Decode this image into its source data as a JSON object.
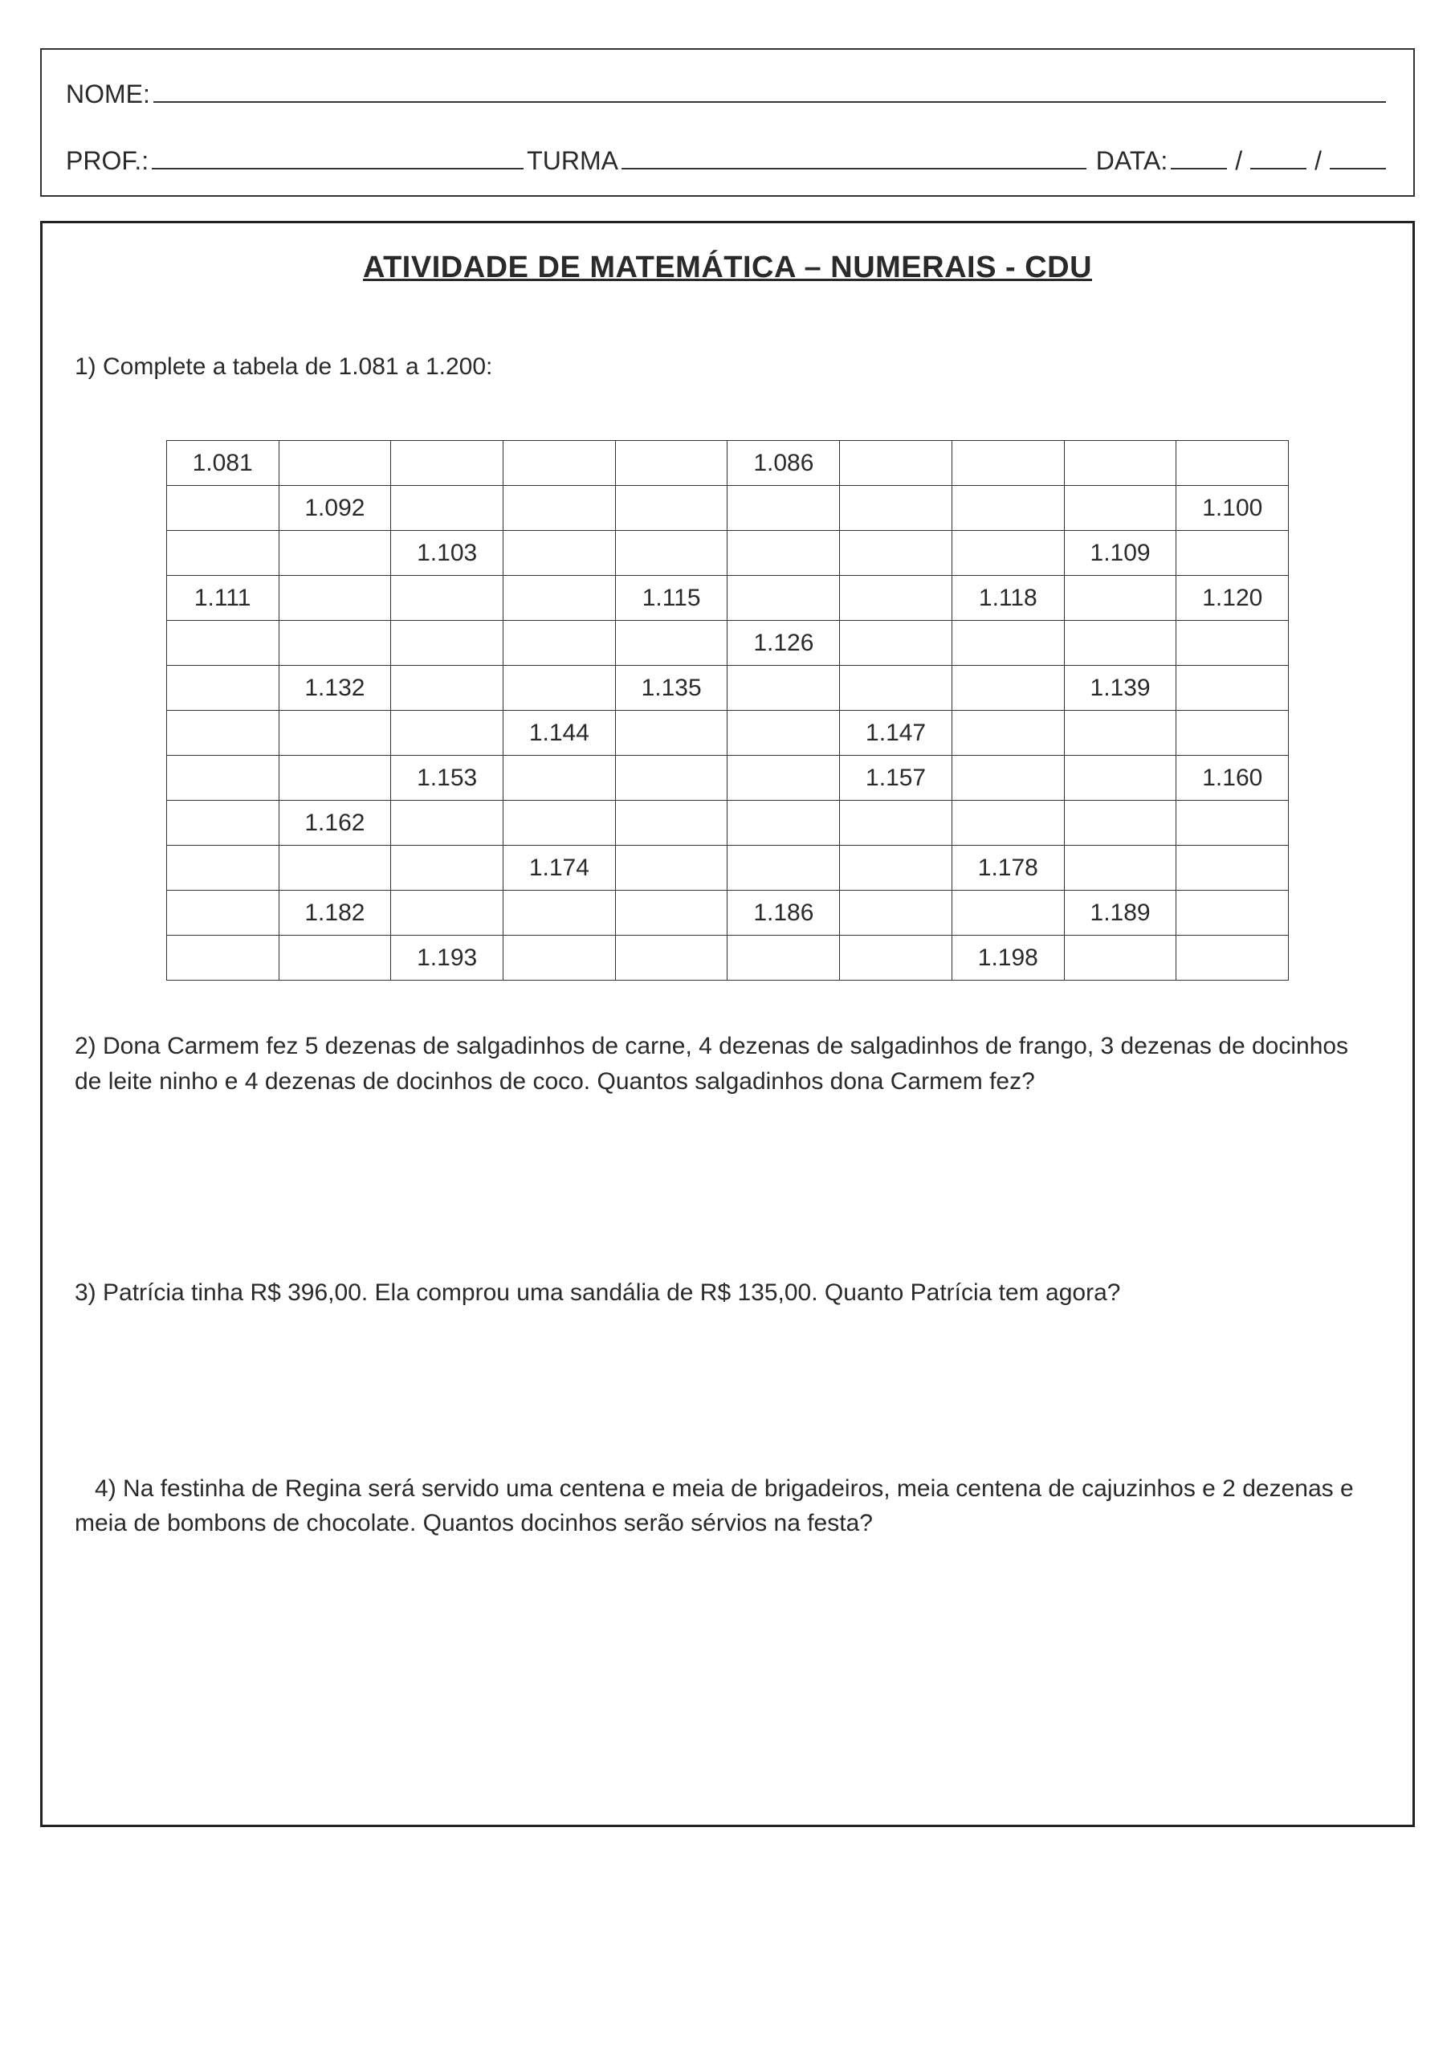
{
  "header": {
    "nome_label": "NOME:",
    "prof_label": "PROF.:",
    "turma_label": "TURMA",
    "data_label": "DATA:"
  },
  "title": "ATIVIDADE DE MATEMÁTICA – NUMERAIS - CDU",
  "q1": "1) Complete a tabela de 1.081 a 1.200:",
  "table": [
    [
      "1.081",
      "",
      "",
      "",
      "",
      "1.086",
      "",
      "",
      "",
      ""
    ],
    [
      "",
      "1.092",
      "",
      "",
      "",
      "",
      "",
      "",
      "",
      "1.100"
    ],
    [
      "",
      "",
      "1.103",
      "",
      "",
      "",
      "",
      "",
      "1.109",
      ""
    ],
    [
      "1.111",
      "",
      "",
      "",
      "1.115",
      "",
      "",
      "1.118",
      "",
      "1.120"
    ],
    [
      "",
      "",
      "",
      "",
      "",
      "1.126",
      "",
      "",
      "",
      ""
    ],
    [
      "",
      "1.132",
      "",
      "",
      "1.135",
      "",
      "",
      "",
      "1.139",
      ""
    ],
    [
      "",
      "",
      "",
      "1.144",
      "",
      "",
      "1.147",
      "",
      "",
      ""
    ],
    [
      "",
      "",
      "1.153",
      "",
      "",
      "",
      "1.157",
      "",
      "",
      "1.160"
    ],
    [
      "",
      "1.162",
      "",
      "",
      "",
      "",
      "",
      "",
      "",
      ""
    ],
    [
      "",
      "",
      "",
      "1.174",
      "",
      "",
      "",
      "1.178",
      "",
      ""
    ],
    [
      "",
      "1.182",
      "",
      "",
      "",
      "1.186",
      "",
      "",
      "1.189",
      ""
    ],
    [
      "",
      "",
      "1.193",
      "",
      "",
      "",
      "",
      "1.198",
      "",
      ""
    ]
  ],
  "q2": "2) Dona Carmem fez 5 dezenas de salgadinhos de carne, 4 dezenas de salgadinhos de frango, 3 dezenas de docinhos de leite ninho e 4 dezenas de docinhos de coco. Quantos salgadinhos dona Carmem fez?",
  "q3": "3)   Patrícia tinha R$ 396,00. Ela comprou uma sandália de R$ 135,00. Quanto Patrícia tem agora?",
  "q4": "   4) Na festinha de Regina será servido uma centena e meia de brigadeiros, meia centena de cajuzinhos e 2 dezenas e meia de bombons de chocolate. Quantos docinhos serão sérvios na festa?"
}
